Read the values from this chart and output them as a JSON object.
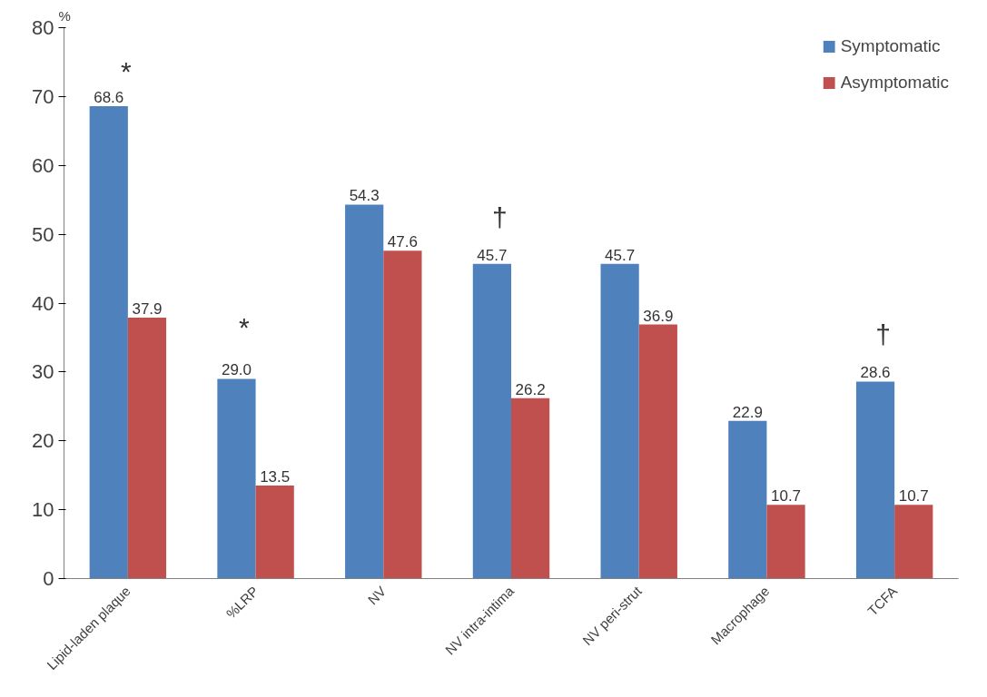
{
  "chart_data": {
    "type": "bar",
    "ylabel": "%",
    "categories": [
      "Lipid-laden plaque",
      "%LRP",
      "NV",
      "NV intra-intima",
      "NV peri-strut",
      "Macrophage",
      "TCFA"
    ],
    "series": [
      {
        "name": "Symptomatic",
        "color": "#4f81bd",
        "values": [
          68.6,
          29.0,
          54.3,
          45.7,
          45.7,
          22.9,
          28.6
        ],
        "value_labels": [
          "68.6",
          "29.0",
          "54.3",
          "45.7",
          "45.7",
          "22.9",
          "28.6"
        ]
      },
      {
        "name": "Asymptomatic",
        "color": "#c0504d",
        "values": [
          37.9,
          13.5,
          47.6,
          26.2,
          36.9,
          10.7,
          10.7
        ],
        "value_labels": [
          "37.9",
          "13.5",
          "47.6",
          "26.2",
          "36.9",
          "10.7",
          "10.7"
        ]
      }
    ],
    "ylim": [
      0,
      80
    ],
    "yticks": [
      0,
      10,
      20,
      30,
      40,
      50,
      60,
      70,
      80
    ],
    "grid": false,
    "legend": "top right",
    "annotations": [
      "*",
      "*",
      "†",
      "†"
    ]
  }
}
